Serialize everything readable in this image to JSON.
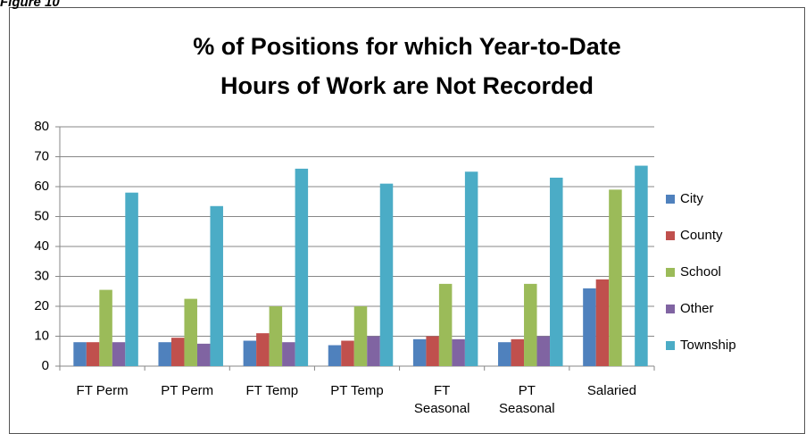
{
  "figure_label": "Figure 10",
  "chart_data": {
    "type": "bar",
    "title": "% of Positions for which Year-to-Date\nHours of Work are Not Recorded",
    "categories": [
      "FT Perm",
      "PT Perm",
      "FT Temp",
      "PT Temp",
      "FT\nSeasonal",
      "PT\nSeasonal",
      "Salaried"
    ],
    "series": [
      {
        "name": "City",
        "color": "#4f81bd",
        "values": [
          8,
          8,
          8.5,
          7,
          9,
          8,
          26
        ]
      },
      {
        "name": "County",
        "color": "#c0504d",
        "values": [
          8,
          9.5,
          11,
          8.5,
          10,
          9,
          29
        ]
      },
      {
        "name": "School",
        "color": "#9bbb59",
        "values": [
          25.5,
          22.5,
          20,
          20,
          27.5,
          27.5,
          59
        ]
      },
      {
        "name": "Other",
        "color": "#8064a2",
        "values": [
          8,
          7.5,
          8,
          10,
          9,
          10,
          0
        ]
      },
      {
        "name": "Township",
        "color": "#4bacc6",
        "values": [
          58,
          53.5,
          66,
          61,
          65,
          63,
          67
        ]
      }
    ],
    "ylim": [
      0,
      80
    ],
    "yticks": [
      0,
      10,
      20,
      30,
      40,
      50,
      60,
      70,
      80
    ],
    "grid": true,
    "legend": "right"
  }
}
